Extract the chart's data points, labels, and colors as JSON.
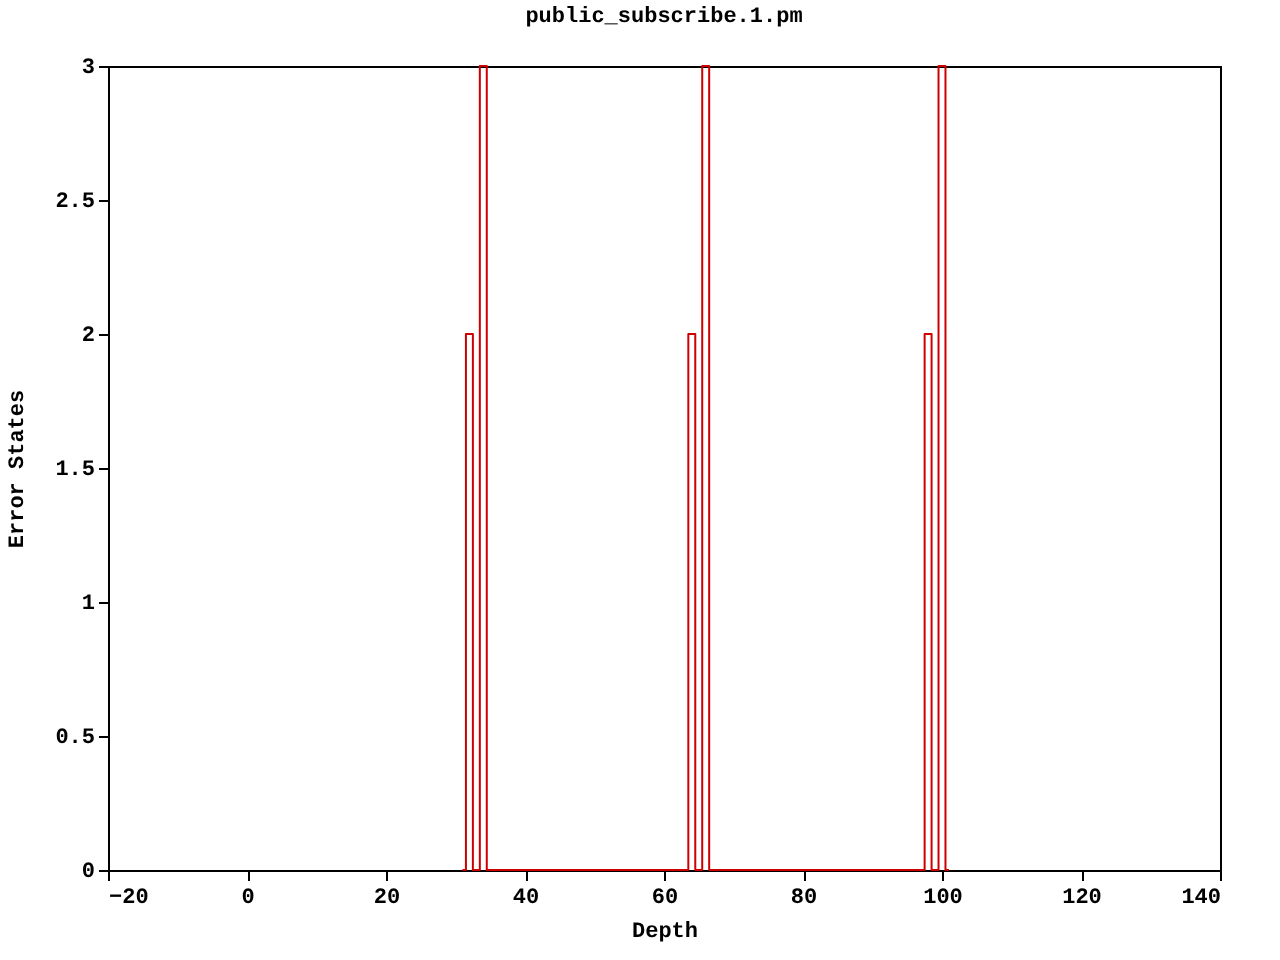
{
  "chart_data": {
    "type": "step",
    "title": "public_subscribe.1.pm",
    "xlabel": "Depth",
    "ylabel": "Error States",
    "x": [
      31,
      32,
      33,
      34,
      35,
      63,
      64,
      65,
      66,
      67,
      97,
      98,
      99,
      100,
      101
    ],
    "series": [
      {
        "color": "#cc0000",
        "values": [
          0,
          2,
          0,
          3,
          0,
          0,
          2,
          0,
          3,
          0,
          0,
          2,
          0,
          3,
          0
        ]
      }
    ],
    "xlim": [
      -20,
      140
    ],
    "xticks": [
      -20,
      0,
      20,
      40,
      60,
      80,
      100,
      120,
      140
    ],
    "ylim": [
      0,
      3
    ],
    "yticks": [
      0,
      0.5,
      1,
      1.5,
      2,
      2.5,
      3
    ],
    "grid": false,
    "marker": "none",
    "line_style": "solid"
  }
}
